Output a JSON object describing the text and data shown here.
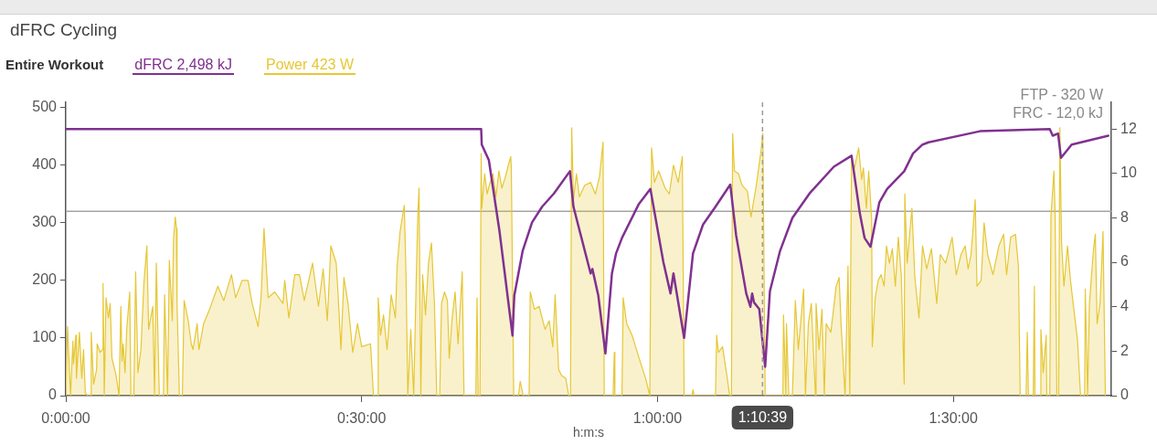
{
  "chart_data": {
    "type": "area",
    "title": "dFRC Cycling",
    "xlabel": "h:m:s",
    "legend_title": "Entire Workout",
    "legend": "top left",
    "marker": "none",
    "xlim": [
      0,
      1.767
    ],
    "xticks": [
      {
        "value": 0,
        "label": "0:00:00"
      },
      {
        "value": 0.5,
        "label": "0:30:00"
      },
      {
        "value": 1,
        "label": "1:00:00"
      },
      {
        "value": 1.5,
        "label": "1:30:00"
      }
    ],
    "ylim": [
      0,
      509
    ],
    "yticks": [
      0,
      100,
      200,
      300,
      400,
      500
    ],
    "y2lim": [
      0,
      13.2
    ],
    "y2ticks": [
      0,
      2,
      4,
      6,
      8,
      10,
      12
    ],
    "series": [
      {
        "name": "dFRC 2,498 kJ",
        "type": "line",
        "axis": "y2",
        "color": "#80318f",
        "x": [
          0,
          0.702,
          0.703,
          0.715,
          0.733,
          0.755,
          0.758,
          0.772,
          0.788,
          0.805,
          0.825,
          0.852,
          0.858,
          0.887,
          0.89,
          0.9,
          0.912,
          0.923,
          0.93,
          0.94,
          0.968,
          0.988,
          1.01,
          1.022,
          1.027,
          1.045,
          1.06,
          1.077,
          1.098,
          1.123,
          1.133,
          1.15,
          1.157,
          1.16,
          1.163,
          1.172,
          1.182,
          1.19,
          1.207,
          1.228,
          1.257,
          1.298,
          1.328,
          1.342,
          1.35,
          1.36,
          1.375,
          1.388,
          1.417,
          1.432,
          1.448,
          1.458,
          1.545,
          1.663,
          1.668,
          1.677,
          1.682,
          1.7,
          1.762
        ],
        "values": [
          12,
          12,
          11.3,
          10.6,
          7.4,
          2.7,
          4.5,
          6.5,
          7.8,
          8.5,
          9.1,
          10.1,
          8.5,
          5.5,
          5.7,
          4.5,
          1.9,
          5.5,
          6.4,
          7.1,
          8.6,
          9.3,
          6.0,
          4.6,
          5.5,
          2.6,
          6.4,
          7.7,
          8.5,
          9.5,
          7.2,
          4.6,
          4.0,
          4.6,
          4.2,
          3.9,
          1.3,
          4.7,
          6.5,
          8.0,
          9.1,
          10.3,
          10.8,
          8.2,
          7.1,
          6.7,
          8.7,
          9.3,
          10.1,
          10.9,
          11.3,
          11.4,
          11.9,
          12.0,
          11.7,
          11.8,
          10.7,
          11.3,
          11.7
        ]
      },
      {
        "name": "Power 423 W",
        "color": "#e6c734",
        "x": [
          0,
          0.003,
          0.008,
          0.012,
          0.013,
          0.017,
          0.018,
          0.023,
          0.027,
          0.03,
          0.033,
          0.037,
          0.042,
          0.043,
          0.047,
          0.052,
          0.053,
          0.058,
          0.062,
          0.063,
          0.065,
          0.068,
          0.072,
          0.075,
          0.078,
          0.085,
          0.09,
          0.093,
          0.095,
          0.097,
          0.1,
          0.103,
          0.108,
          0.11,
          0.115,
          0.118,
          0.122,
          0.127,
          0.132,
          0.137,
          0.14,
          0.147,
          0.15,
          0.153,
          0.158,
          0.165,
          0.167,
          0.172,
          0.175,
          0.18,
          0.182,
          0.185,
          0.187,
          0.188,
          0.192,
          0.197,
          0.2,
          0.207,
          0.212,
          0.215,
          0.222,
          0.225,
          0.233,
          0.243,
          0.257,
          0.267,
          0.28,
          0.287,
          0.298,
          0.308,
          0.315,
          0.325,
          0.33,
          0.335,
          0.342,
          0.353,
          0.367,
          0.37,
          0.377,
          0.387,
          0.395,
          0.403,
          0.417,
          0.427,
          0.435,
          0.442,
          0.448,
          0.457,
          0.46,
          0.465,
          0.47,
          0.477,
          0.485,
          0.493,
          0.5,
          0.515,
          0.52,
          0.527,
          0.528,
          0.532,
          0.537,
          0.543,
          0.55,
          0.557,
          0.56,
          0.565,
          0.572,
          0.575,
          0.578,
          0.583,
          0.588,
          0.592,
          0.595,
          0.597,
          0.6,
          0.603,
          0.608,
          0.613,
          0.618,
          0.623,
          0.627,
          0.632,
          0.635,
          0.64,
          0.645,
          0.648,
          0.653,
          0.658,
          0.663,
          0.67,
          0.673,
          0.693,
          0.695,
          0.697,
          0.7,
          0.702,
          0.703,
          0.708,
          0.712,
          0.717,
          0.722,
          0.727,
          0.732,
          0.737,
          0.743,
          0.748,
          0.752,
          0.753,
          0.757,
          0.765,
          0.768,
          0.773,
          0.783,
          0.785,
          0.792,
          0.8,
          0.81,
          0.817,
          0.823,
          0.827,
          0.833,
          0.838,
          0.845,
          0.85,
          0.853,
          0.855,
          0.858,
          0.863,
          0.868,
          0.877,
          0.887,
          0.895,
          0.902,
          0.908,
          0.91,
          0.925,
          0.927,
          0.928,
          0.94,
          0.942,
          0.948,
          0.957,
          0.963,
          0.972,
          0.98,
          0.987,
          0.988,
          0.99,
          0.995,
          1.002,
          1.013,
          1.02,
          1.027,
          1.035,
          1.042,
          1.045,
          1.058,
          1.06,
          1.062,
          1.098,
          1.1,
          1.103,
          1.11,
          1.118,
          1.122,
          1.125,
          1.127,
          1.13,
          1.137,
          1.143,
          1.152,
          1.158,
          1.167,
          1.175,
          1.178,
          1.182,
          1.212,
          1.213,
          1.217,
          1.218,
          1.222,
          1.228,
          1.233,
          1.238,
          1.247,
          1.25,
          1.255,
          1.26,
          1.267,
          1.268,
          1.273,
          1.278,
          1.282,
          1.285,
          1.293,
          1.302,
          1.307,
          1.31,
          1.317,
          1.322,
          1.325,
          1.328,
          1.333,
          1.34,
          1.345,
          1.348,
          1.353,
          1.357,
          1.362,
          1.363,
          1.368,
          1.373,
          1.378,
          1.383,
          1.387,
          1.392,
          1.397,
          1.402,
          1.407,
          1.412,
          1.417,
          1.418,
          1.422,
          1.43,
          1.435,
          1.442,
          1.448,
          1.455,
          1.463,
          1.472,
          1.478,
          1.487,
          1.498,
          1.505,
          1.513,
          1.52,
          1.525,
          1.53,
          1.537,
          1.54,
          1.547,
          1.552,
          1.558,
          1.567,
          1.577,
          1.585,
          1.59,
          1.597,
          1.605,
          1.61,
          1.613,
          1.623,
          1.625,
          1.627,
          1.635,
          1.637,
          1.638,
          1.647,
          1.648,
          1.652,
          1.657,
          1.658,
          1.663,
          1.665,
          1.67,
          1.672,
          1.675,
          1.678,
          1.68,
          1.683,
          1.687,
          1.693,
          1.698,
          1.71,
          1.715,
          1.722,
          1.723,
          1.727,
          1.728,
          1.73,
          1.737,
          1.74,
          1.743,
          1.748,
          1.753,
          1.757
        ],
        "values": [
          0,
          120,
          0,
          95,
          55,
          105,
          30,
          110,
          30,
          80,
          5,
          0,
          0,
          110,
          20,
          45,
          90,
          75,
          80,
          195,
          0,
          170,
          135,
          160,
          65,
          35,
          0,
          155,
          60,
          90,
          40,
          115,
          180,
          0,
          0,
          215,
          40,
          80,
          195,
          260,
          115,
          155,
          0,
          230,
          0,
          0,
          175,
          0,
          235,
          130,
          270,
          310,
          290,
          160,
          0,
          0,
          165,
          130,
          90,
          80,
          125,
          80,
          125,
          150,
          190,
          165,
          210,
          170,
          200,
          200,
          160,
          120,
          170,
          290,
          170,
          180,
          160,
          200,
          135,
          210,
          210,
          165,
          230,
          155,
          220,
          130,
          260,
          230,
          180,
          80,
          205,
          160,
          75,
          125,
          85,
          90,
          0,
          0,
          170,
          105,
          140,
          80,
          175,
          135,
          225,
          285,
          330,
          210,
          0,
          115,
          0,
          190,
          315,
          360,
          0,
          210,
          140,
          230,
          265,
          160,
          0,
          0,
          160,
          180,
          165,
          65,
          135,
          180,
          90,
          215,
          0,
          0,
          170,
          0,
          0,
          420,
          325,
          385,
          350,
          370,
          385,
          345,
          390,
          360,
          380,
          400,
          415,
          395,
          0,
          0,
          25,
          0,
          0,
          180,
          150,
          155,
          115,
          130,
          85,
          175,
          45,
          35,
          30,
          0,
          0,
          465,
          340,
          385,
          345,
          365,
          370,
          350,
          380,
          440,
          0,
          0,
          75,
          0,
          0,
          170,
          125,
          105,
          85,
          55,
          30,
          0,
          0,
          430,
          370,
          390,
          360,
          350,
          400,
          370,
          415,
          0,
          0,
          10,
          0,
          0,
          105,
          75,
          85,
          30,
          0,
          0,
          455,
          390,
          385,
          365,
          355,
          310,
          365,
          425,
          455,
          0,
          0,
          140,
          0,
          125,
          0,
          0,
          165,
          80,
          185,
          0,
          125,
          160,
          0,
          160,
          80,
          150,
          0,
          125,
          110,
          190,
          205,
          130,
          0,
          225,
          0,
          410,
          395,
          430,
          375,
          395,
          325,
          390,
          305,
          85,
          170,
          200,
          210,
          190,
          260,
          230,
          255,
          190,
          275,
          210,
          20,
          350,
          230,
          325,
          205,
          135,
          260,
          220,
          255,
          160,
          245,
          230,
          275,
          210,
          245,
          260,
          220,
          245,
          340,
          190,
          200,
          300,
          245,
          210,
          260,
          280,
          210,
          275,
          280,
          225,
          0,
          0,
          110,
          0,
          0,
          190,
          0,
          0,
          115,
          40,
          105,
          0,
          0,
          310,
          390,
          315,
          0,
          0,
          465,
          265,
          190,
          260,
          200,
          95,
          0,
          0,
          185,
          0,
          0,
          160,
          255,
          280,
          125,
          160,
          285,
          0
        ]
      }
    ],
    "ref_lines": [
      {
        "axis": "y",
        "value": 320,
        "color": "#a3a3a3"
      },
      {
        "axis": "x",
        "value": 1.1775,
        "label": "1:10:39",
        "color": "#999999",
        "line_style": "dashed"
      }
    ],
    "annotations": [
      "FTP - 320 W",
      "FRC - 12,0 kJ"
    ]
  }
}
